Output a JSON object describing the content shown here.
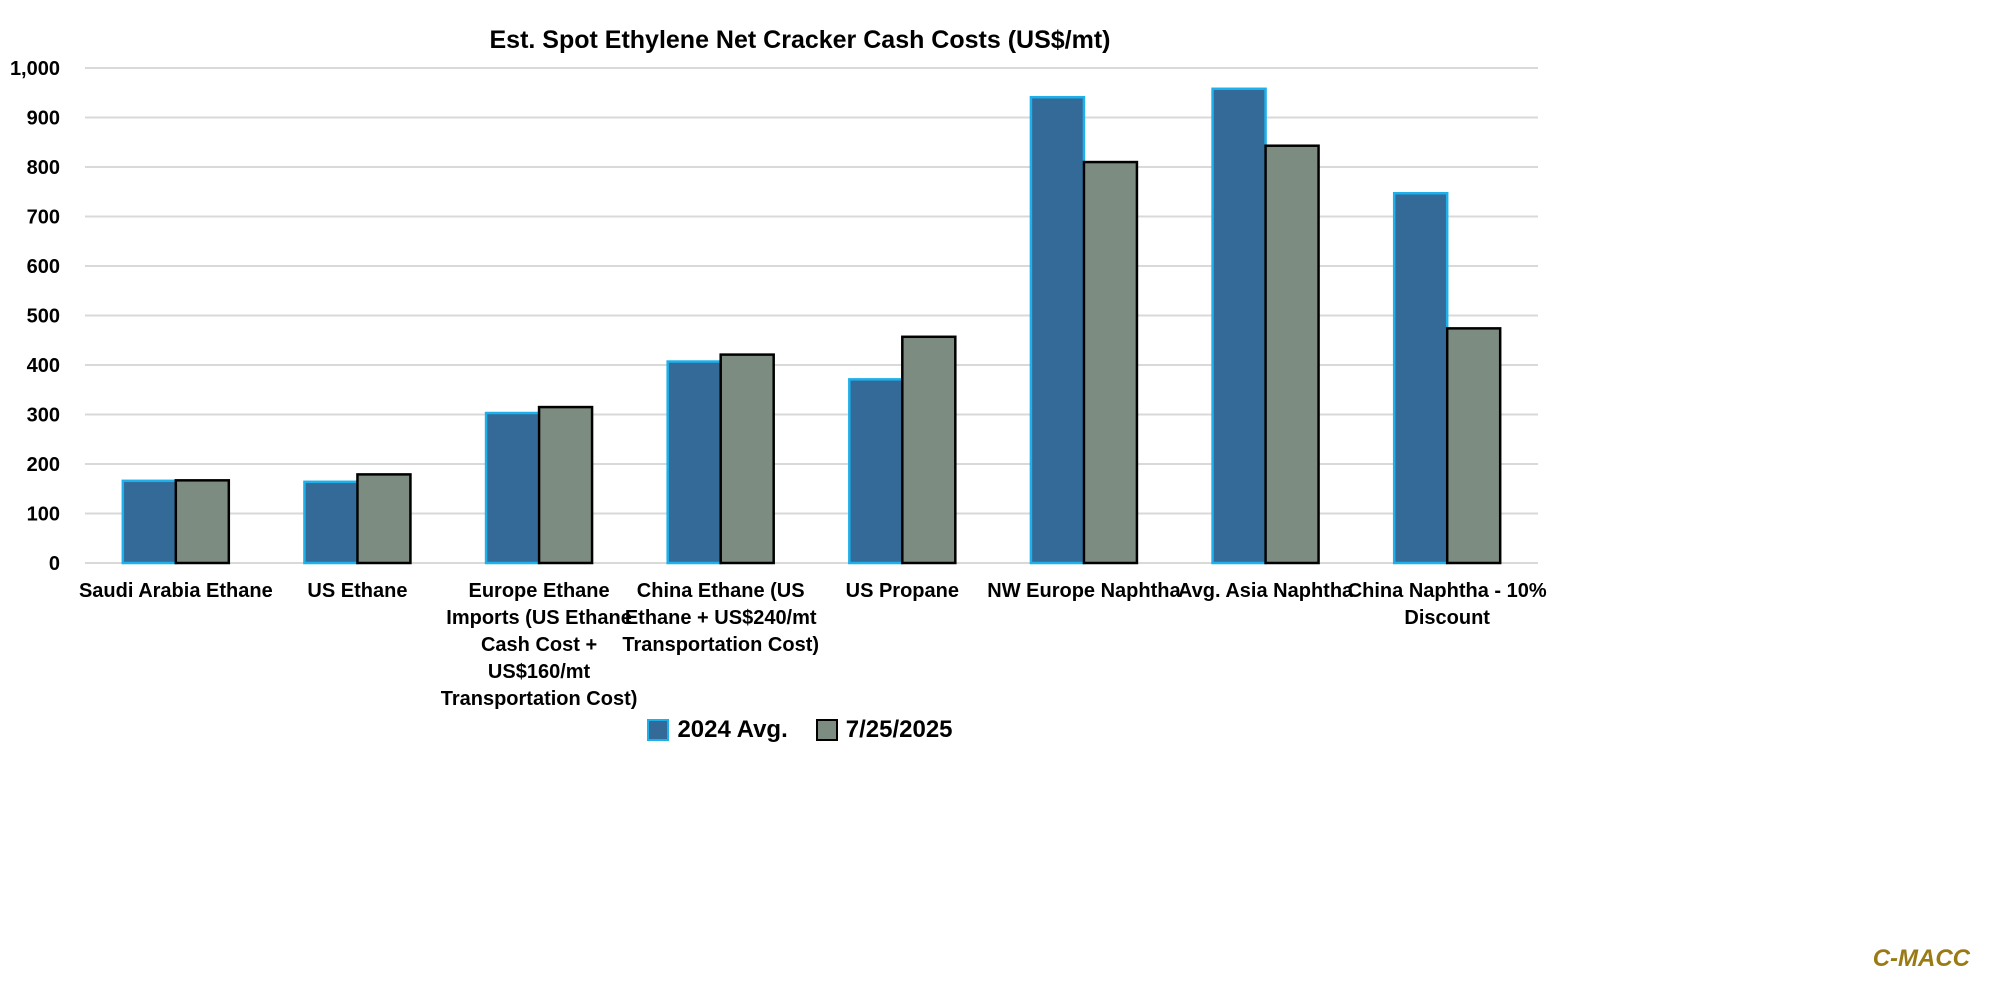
{
  "chart_data": {
    "type": "bar",
    "title": "Est. Spot Ethylene Net Cracker Cash Costs (US$/mt)",
    "xlabel": "",
    "ylabel": "",
    "ylim": [
      0,
      1000
    ],
    "yticks": [
      "0",
      "100",
      "200",
      "300",
      "400",
      "500",
      "600",
      "700",
      "800",
      "900",
      "1,000"
    ],
    "ytick_values": [
      0,
      100,
      200,
      300,
      400,
      500,
      600,
      700,
      800,
      900,
      1000
    ],
    "grid": true,
    "legend_position": "bottom",
    "categories": [
      "Saudi Arabia Ethane",
      "US Ethane",
      "Europe Ethane\nImports (US Ethane\nCash Cost +\nUS$160/mt\nTransportation Cost)",
      "China Ethane (US\nEthane + US$240/mt\nTransportation Cost)",
      "US Propane",
      "NW Europe Naphtha",
      "Avg. Asia Naphtha",
      "China Naphtha - 10%\nDiscount"
    ],
    "series": [
      {
        "name": "2024 Avg.",
        "color": "#336a98",
        "border": "#1eb0ea",
        "values": [
          166,
          164,
          303,
          407,
          371,
          941,
          958,
          747
        ]
      },
      {
        "name": "7/25/2025",
        "color": "#7d8c80",
        "border": "#000000",
        "values": [
          167,
          179,
          315,
          421,
          457,
          810,
          843,
          474
        ]
      }
    ]
  },
  "watermark": "C-MACC"
}
